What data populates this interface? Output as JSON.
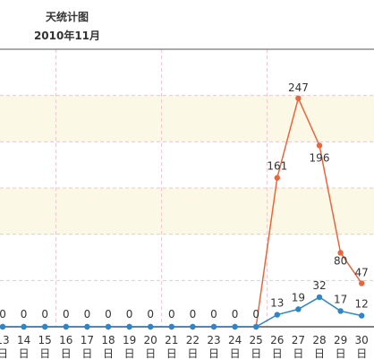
{
  "header": {
    "title": "天统计图",
    "subtitle": "2010年11月"
  },
  "chart_data": {
    "type": "line",
    "title": "天统计图",
    "subtitle": "2010年11月",
    "xlabel": "",
    "ylabel": "",
    "categories": [
      "13",
      "14",
      "15",
      "16",
      "17",
      "18",
      "19",
      "20",
      "21",
      "22",
      "23",
      "24",
      "25",
      "26",
      "27",
      "28",
      "29",
      "30"
    ],
    "category_suffix": "日",
    "ylim": [
      0,
      300
    ],
    "grid": true,
    "series": [
      {
        "color": "#e8663d",
        "values": [
          0,
          0,
          0,
          0,
          0,
          0,
          0,
          0,
          0,
          0,
          0,
          0,
          0,
          161,
          247,
          196,
          80,
          47
        ]
      },
      {
        "color": "#2f86c6",
        "values": [
          0,
          0,
          0,
          0,
          0,
          0,
          0,
          0,
          0,
          0,
          0,
          0,
          0,
          13,
          19,
          32,
          17,
          12
        ]
      }
    ],
    "band_color": "#fbf8e6"
  }
}
